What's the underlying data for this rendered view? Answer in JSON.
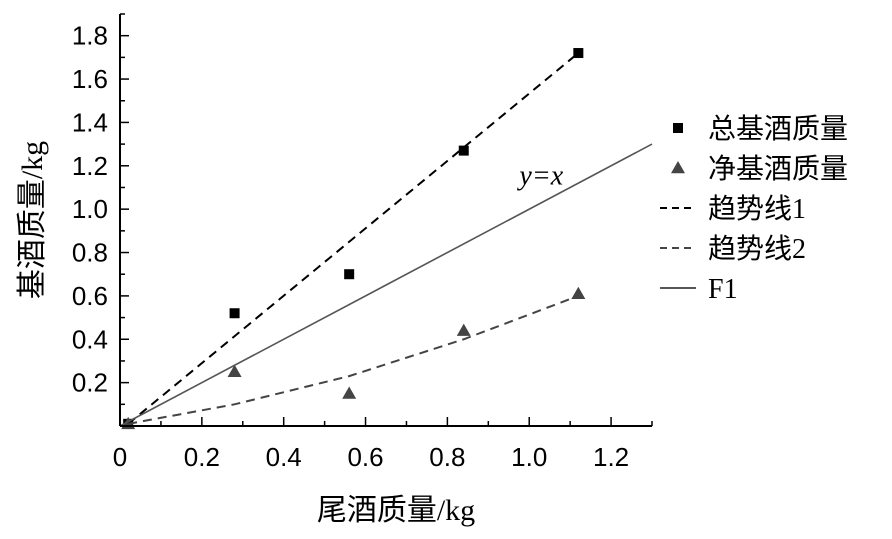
{
  "chart_data": {
    "type": "scatter",
    "xlabel": "尾酒质量/kg",
    "ylabel": "基酒质量/kg",
    "xlim": [
      0,
      1.3
    ],
    "ylim": [
      0,
      1.9
    ],
    "x_ticks": [
      "0",
      "0.2",
      "0.4",
      "0.6",
      "0.8",
      "1.0",
      "1.2"
    ],
    "y_ticks": [
      "0.2",
      "0.4",
      "0.6",
      "0.8",
      "1.0",
      "1.2",
      "1.4",
      "1.6",
      "1.8"
    ],
    "series": [
      {
        "name": "总基酒质量",
        "kind": "points",
        "marker": "square",
        "color": "#000000",
        "x": [
          0.02,
          0.28,
          0.56,
          0.84,
          1.12
        ],
        "y": [
          0.01,
          0.52,
          0.7,
          1.27,
          1.72
        ]
      },
      {
        "name": "净基酒质量",
        "kind": "points",
        "marker": "triangle",
        "color": "#444444",
        "x": [
          0.02,
          0.28,
          0.56,
          0.84,
          1.12
        ],
        "y": [
          0.01,
          0.25,
          0.15,
          0.44,
          0.61
        ]
      },
      {
        "name": "趋势线1",
        "kind": "line",
        "style": "dashed",
        "color": "#000000",
        "x": [
          0.02,
          1.12
        ],
        "y": [
          0.01,
          1.72
        ]
      },
      {
        "name": "趋势线2",
        "kind": "line",
        "style": "dashed",
        "color": "#444444",
        "x": [
          0.02,
          0.28,
          0.56,
          0.84,
          1.12
        ],
        "y": [
          0.01,
          0.1,
          0.23,
          0.4,
          0.6
        ]
      },
      {
        "name": "F1",
        "kind": "line",
        "style": "solid",
        "color": "#555555",
        "x": [
          0,
          1.3
        ],
        "y": [
          0,
          1.3
        ]
      }
    ],
    "annotations": [
      {
        "text": "y=x",
        "x": 1.02,
        "y": 1.17
      }
    ],
    "legend_position": "right",
    "grid": false
  }
}
